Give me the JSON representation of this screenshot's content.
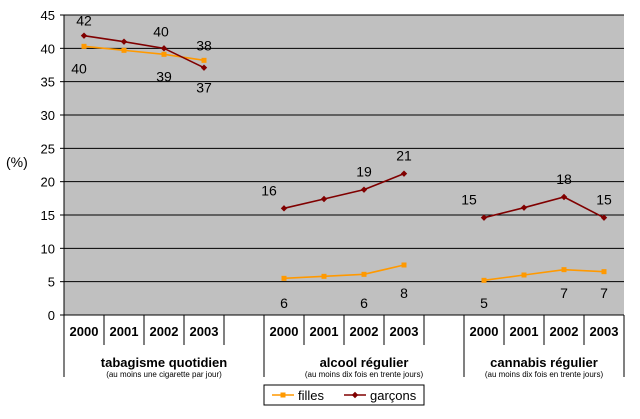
{
  "chart_data": {
    "type": "line",
    "ylabel": "(%)",
    "ylim": [
      0,
      45
    ],
    "yticks": [
      0,
      5,
      10,
      15,
      20,
      25,
      30,
      35,
      40,
      45
    ],
    "ytick_labels": [
      "0",
      "5",
      "10",
      "15",
      "20",
      "25",
      "30",
      "35",
      "40",
      "45"
    ],
    "grid": true,
    "legend_position": "bottom",
    "groups": [
      {
        "label": "tabagisme quotidien",
        "sublabel": "(au moins une cigarette par jour)",
        "years": [
          "2000",
          "2001",
          "2002",
          "2003"
        ],
        "filles": [
          40.3,
          39.7,
          39.1,
          38.2
        ],
        "garcons": [
          41.9,
          41.0,
          40.0,
          37.1
        ],
        "filles_labels": [
          "40",
          "",
          "39",
          "38"
        ],
        "garcons_labels": [
          "42",
          "",
          "40",
          "37"
        ]
      },
      {
        "label": "alcool régulier",
        "sublabel": "(au moins dix fois en trente jours)",
        "years": [
          "2000",
          "2001",
          "2002",
          "2003"
        ],
        "filles": [
          5.5,
          5.8,
          6.1,
          7.5
        ],
        "garcons": [
          16.0,
          17.4,
          18.8,
          21.2
        ],
        "filles_labels": [
          "6",
          "",
          "6",
          "8"
        ],
        "garcons_labels": [
          "16",
          "",
          "19",
          "21"
        ]
      },
      {
        "label": "cannabis régulier",
        "sublabel": "(au moins dix fois en trente jours)",
        "years": [
          "2000",
          "2001",
          "2002",
          "2003"
        ],
        "filles": [
          5.2,
          6.0,
          6.8,
          6.5
        ],
        "garcons": [
          14.6,
          16.1,
          17.7,
          14.6
        ],
        "filles_labels": [
          "5",
          "",
          "7",
          "7"
        ],
        "garcons_labels": [
          "15",
          "",
          "18",
          "15"
        ]
      }
    ],
    "series": [
      {
        "name": "filles",
        "color": "#FF9900",
        "marker": "square"
      },
      {
        "name": "garçons",
        "color": "#800000",
        "marker": "diamond"
      }
    ]
  }
}
